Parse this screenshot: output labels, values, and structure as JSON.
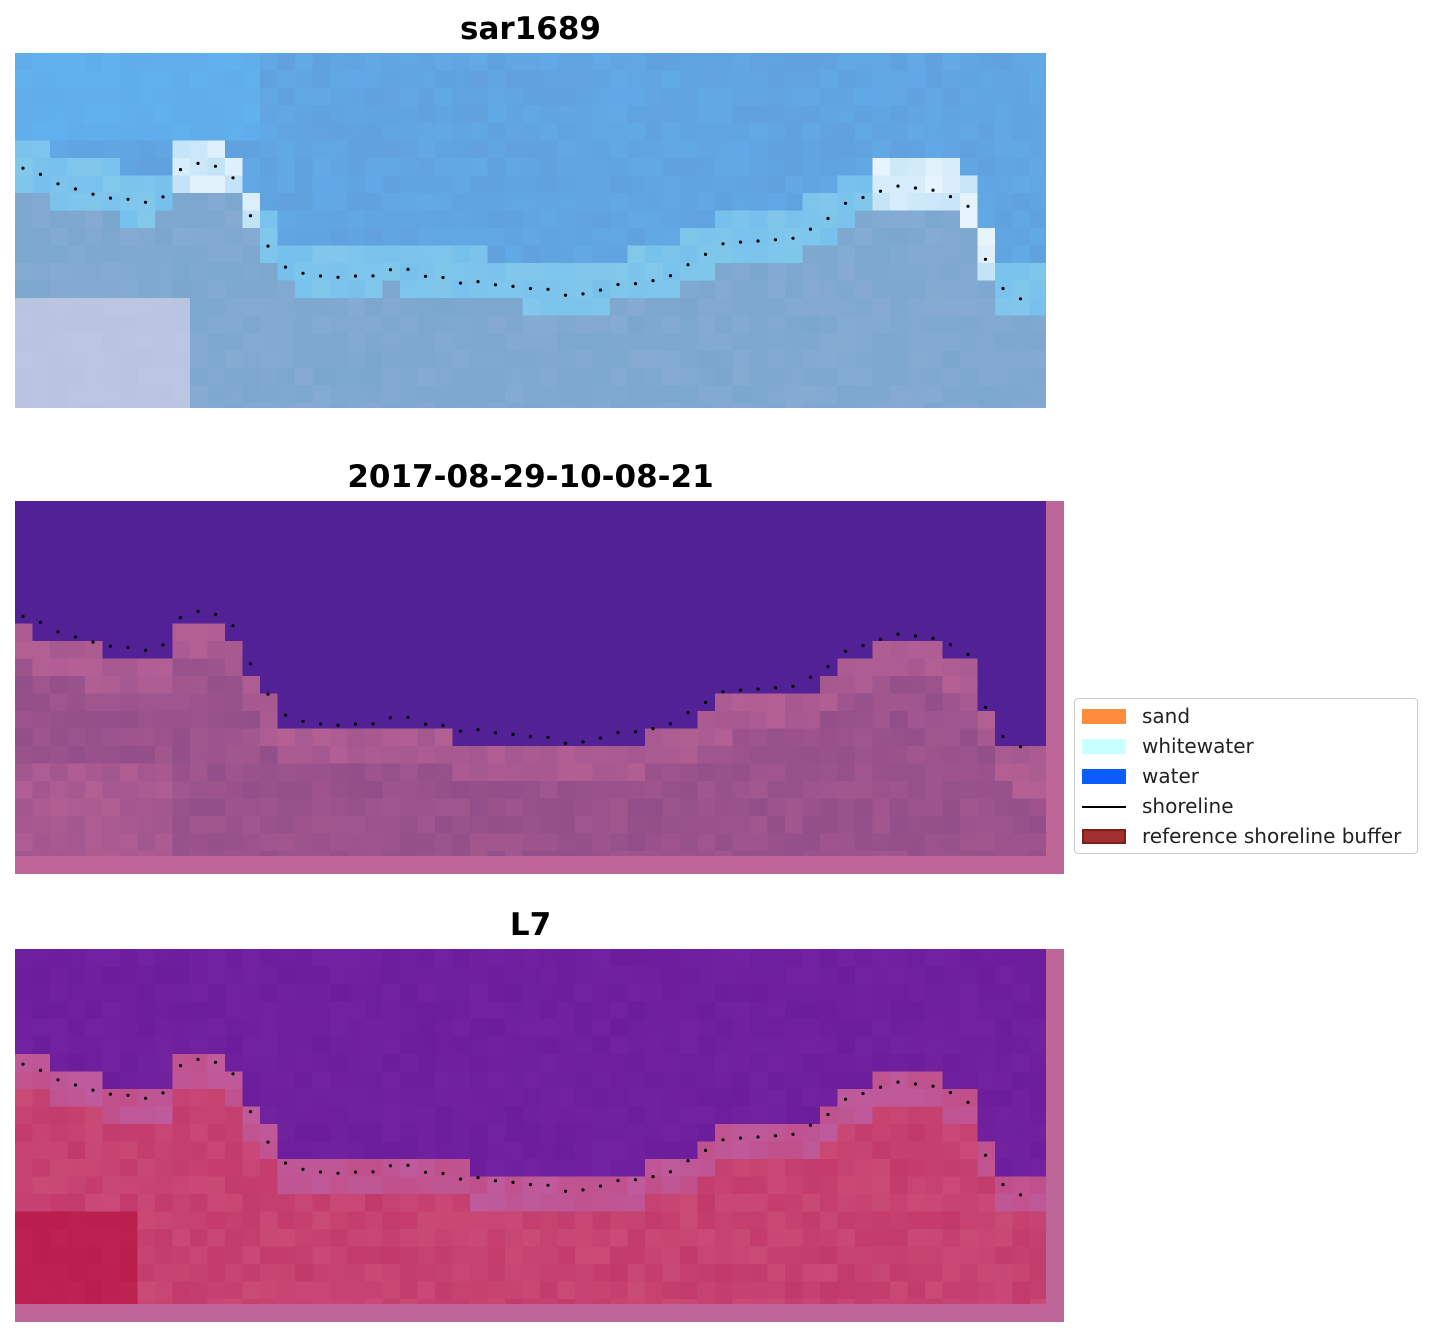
{
  "figure": {
    "panels": [
      {
        "title": "sar1689",
        "kind": "rgb"
      },
      {
        "title": "2017-08-29-10-08-21",
        "kind": "classified"
      },
      {
        "title": "L7",
        "kind": "index"
      }
    ]
  },
  "legend": {
    "items": [
      {
        "label": "sand",
        "type": "patch",
        "color": "#ff8c3a"
      },
      {
        "label": "whitewater",
        "type": "patch",
        "color": "#c8ffff"
      },
      {
        "label": "water",
        "type": "patch",
        "color": "#0a5cff"
      },
      {
        "label": "shoreline",
        "type": "line",
        "color": "#000000"
      },
      {
        "label": "reference shoreline buffer",
        "type": "patch",
        "color": "#a0302d",
        "edge": "#7a1f1c"
      }
    ]
  },
  "colors": {
    "classified_water": "#522196",
    "classified_land": "#8a4a86",
    "classified_border": "#bf6698",
    "index_water": "#6c1d9c",
    "index_land": "#c23a6a",
    "rgb_water": "#5e9ad8",
    "rgb_sand": "#8fb0d8",
    "shoreline_dots": "#000000"
  }
}
